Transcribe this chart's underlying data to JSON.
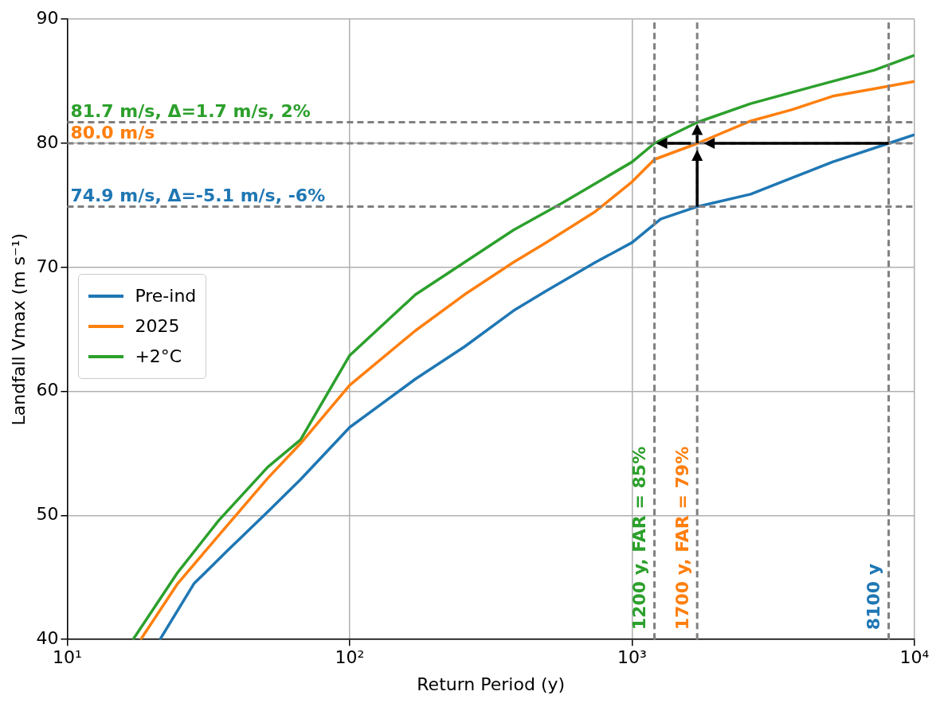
{
  "chart_data": {
    "type": "line",
    "xlabel": "Return Period (y)",
    "ylabel": "Landfall Vmax (m s⁻¹)",
    "log": "x",
    "xlim": [
      10,
      10000
    ],
    "xticks": [
      {
        "value": 10,
        "label": "10¹"
      },
      {
        "value": 100,
        "label": "10²"
      },
      {
        "value": 1000,
        "label": "10³"
      },
      {
        "value": 10000,
        "label": "10⁴"
      }
    ],
    "ylim": [
      40,
      90
    ],
    "yticks": [
      40,
      50,
      60,
      70,
      80,
      90
    ],
    "grid": true,
    "legend": "left",
    "marker": "none",
    "line_style": "solid",
    "series": [
      {
        "name": "Pre-ind",
        "color": "#1f77b4",
        "x": [
          21.3,
          28.1,
          36.7,
          51.3,
          67,
          100,
          171,
          255,
          380,
          496,
          741,
          1000,
          1262,
          1706,
          2630,
          3670,
          5130,
          8100,
          10000
        ],
        "values": [
          40,
          44.5,
          47.1,
          50.3,
          52.9,
          57.1,
          61,
          63.6,
          66.5,
          68.1,
          70.4,
          72,
          73.9,
          74.9,
          75.9,
          77.2,
          78.5,
          80,
          80.7
        ]
      },
      {
        "name": "2025",
        "color": "#ff7f0e",
        "x": [
          18.2,
          24.6,
          34.4,
          51.3,
          67,
          100,
          171,
          255,
          380,
          496,
          741,
          1000,
          1200,
          1706,
          2630,
          3670,
          5130,
          7200,
          10000
        ],
        "values": [
          40,
          44.5,
          48.4,
          53,
          55.8,
          60.5,
          64.9,
          67.8,
          70.4,
          72,
          74.5,
          76.9,
          78.7,
          80,
          81.8,
          82.7,
          83.8,
          84.4,
          85
        ]
      },
      {
        "name": "+2°C",
        "color": "#2ca02c",
        "x": [
          17.1,
          24.6,
          34.4,
          51.3,
          67,
          100,
          171,
          255,
          380,
          567,
          1000,
          1200,
          1706,
          2630,
          3670,
          5130,
          7200,
          10000
        ],
        "values": [
          40,
          45.4,
          49.6,
          53.9,
          56.1,
          62.9,
          67.8,
          70.4,
          73,
          75.2,
          78.5,
          80,
          81.7,
          83.2,
          84.1,
          85,
          85.9,
          87.1
        ]
      }
    ],
    "ref_lines": [
      {
        "axis": "y",
        "value": 81.7,
        "label": "81.7 m/s, Δ=1.7 m/s, 2%",
        "line_style": "dashed"
      },
      {
        "axis": "y",
        "value": 80.0,
        "label": "80.0 m/s",
        "line_style": "dashed"
      },
      {
        "axis": "y",
        "value": 74.9,
        "label": "74.9 m/s, Δ=-5.1 m/s, -6%",
        "line_style": "dashed"
      },
      {
        "axis": "x",
        "value": 1200,
        "label": "1200 y, FAR = 85%",
        "line_style": "dashed"
      },
      {
        "axis": "x",
        "value": 1700,
        "label": "1700 y, FAR = 79%",
        "line_style": "dashed"
      },
      {
        "axis": "x",
        "value": 8100,
        "label": "8100 y",
        "line_style": "dashed"
      }
    ]
  }
}
